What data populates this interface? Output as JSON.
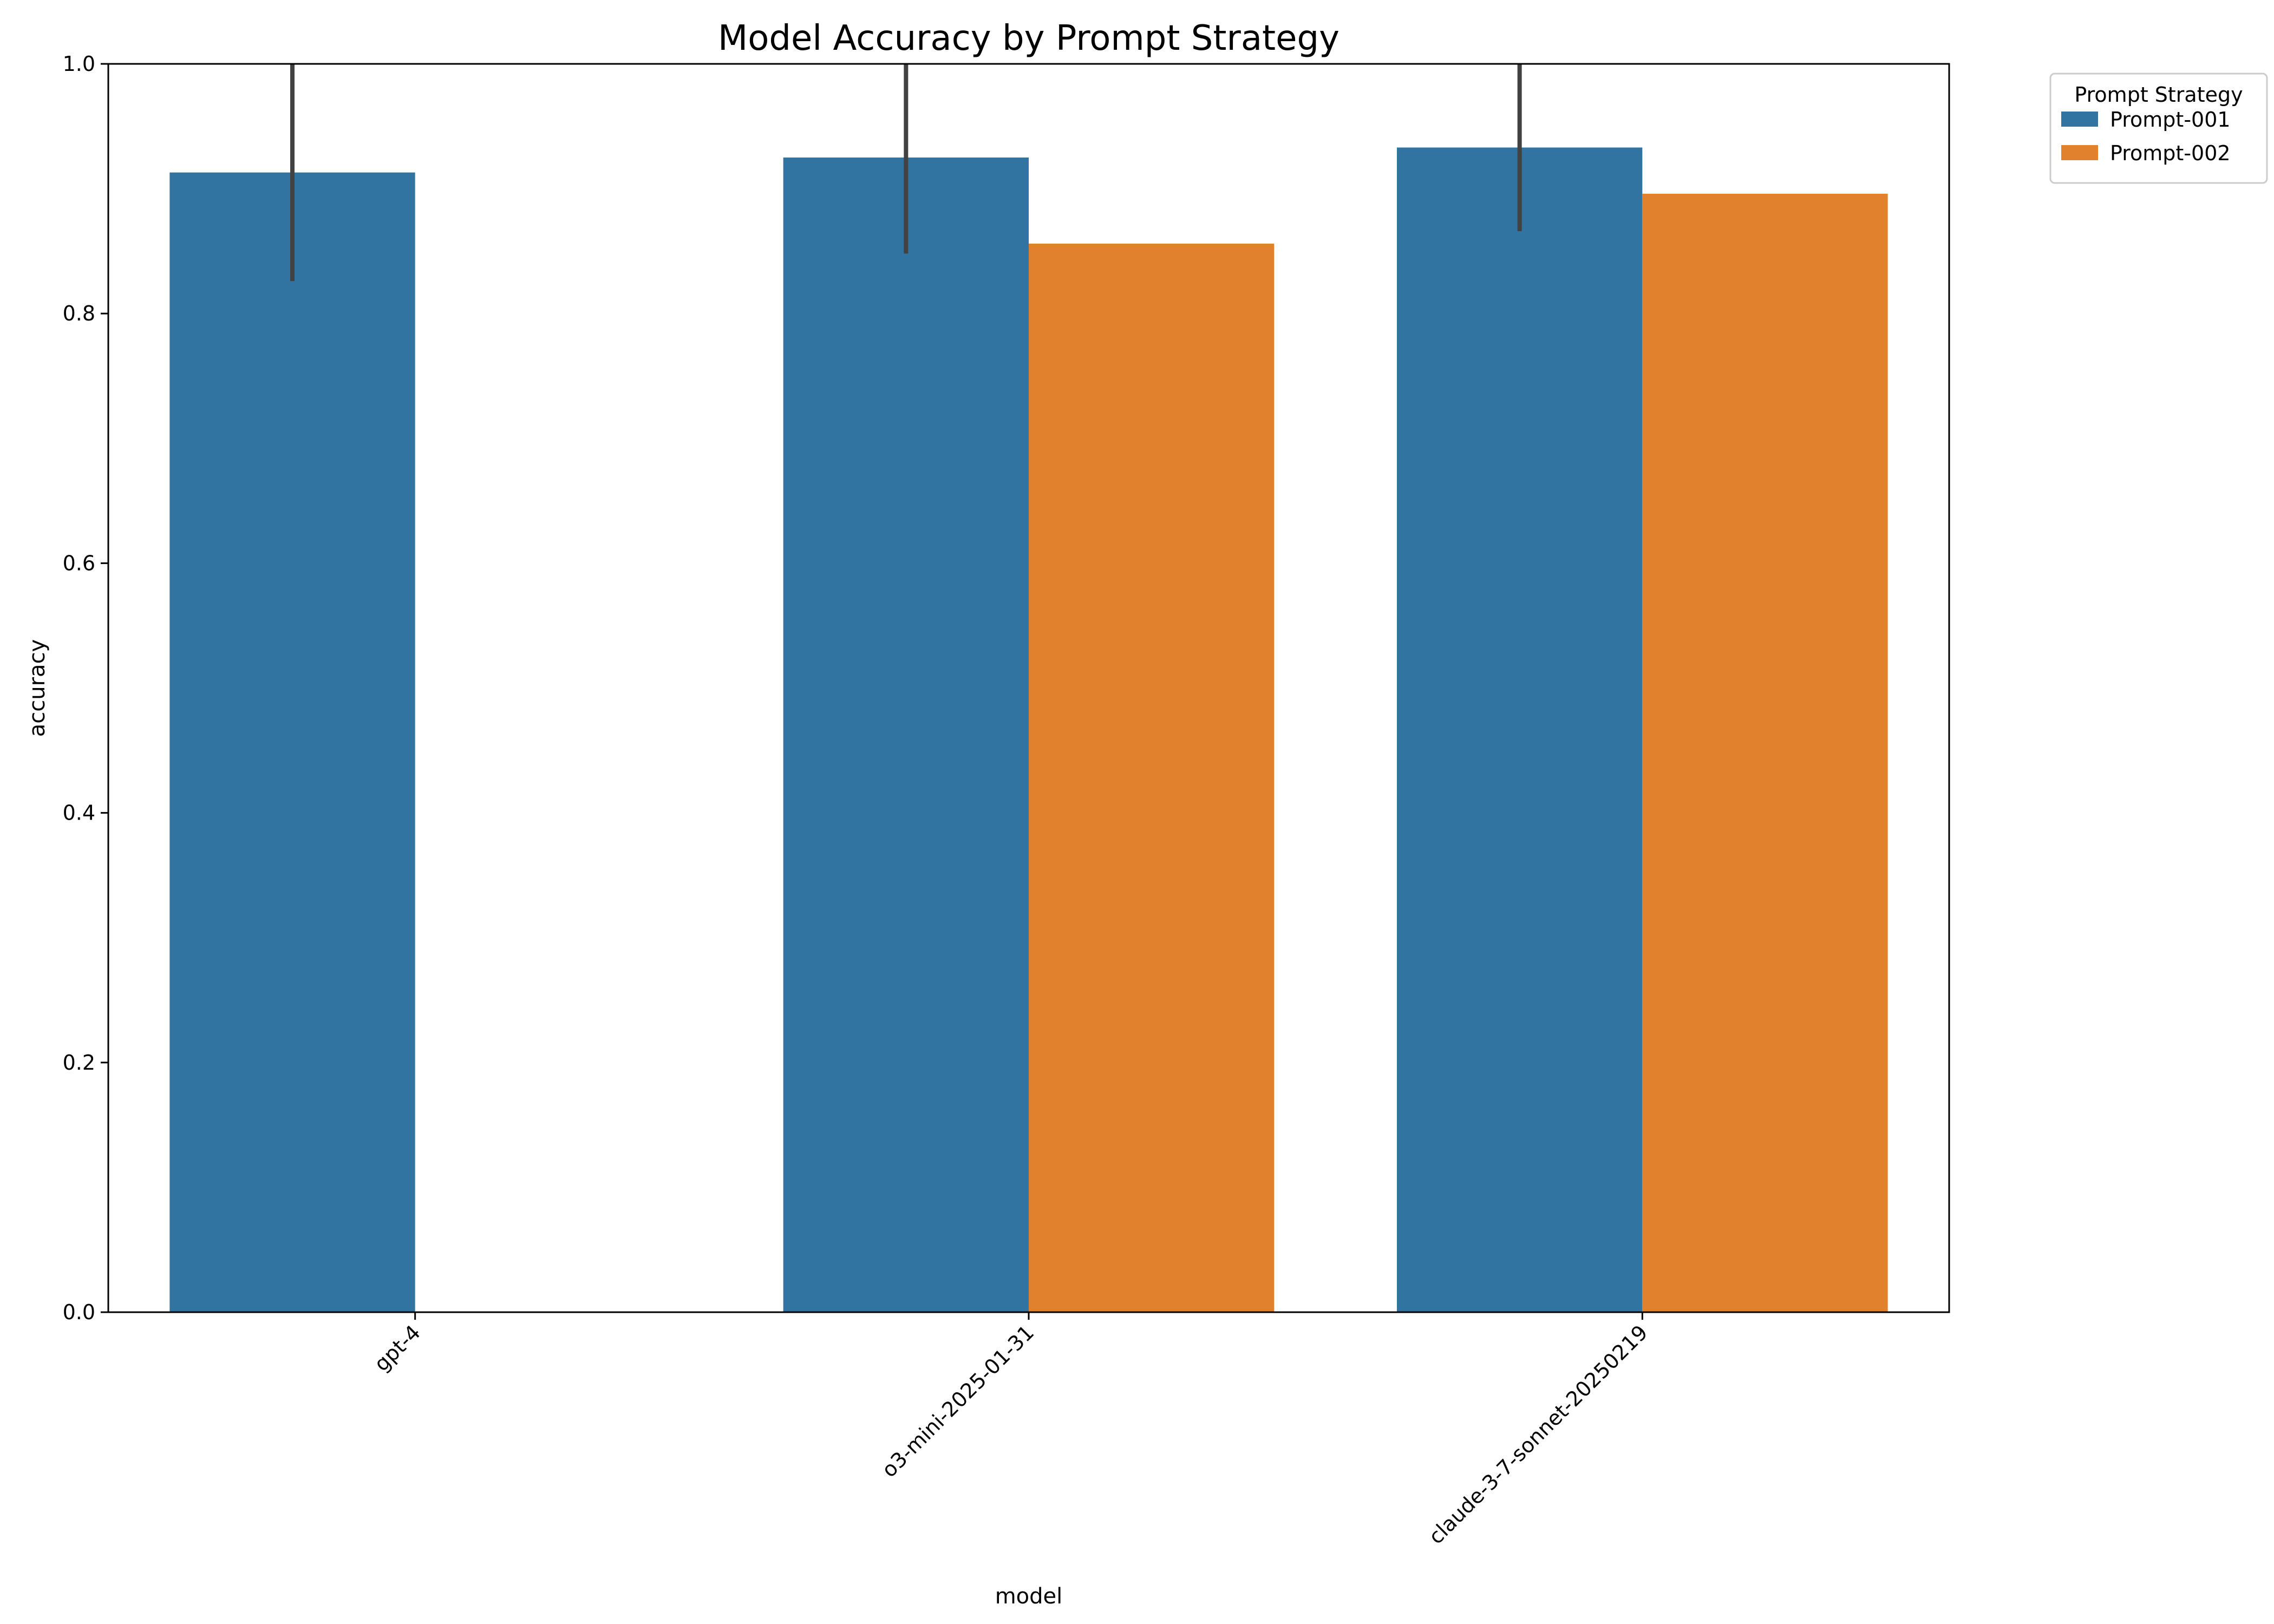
{
  "chart_data": {
    "type": "bar",
    "title": "Model Accuracy by Prompt Strategy",
    "xlabel": "model",
    "ylabel": "accuracy",
    "ylim": [
      0,
      1.0
    ],
    "yticks": [
      "0.0",
      "0.2",
      "0.4",
      "0.6",
      "0.8",
      "1.0"
    ],
    "categories": [
      "gpt-4",
      "o3-mini-2025-01-31",
      "claude-3-7-sonnet-20250219"
    ],
    "grid": false,
    "legend": {
      "title": "Prompt Strategy",
      "placement": "outside top-right"
    },
    "series": [
      {
        "name": "Prompt-001",
        "color": "#3274a1",
        "values": [
          0.913,
          0.925,
          0.933
        ],
        "error_low": [
          0.826,
          0.848,
          0.866
        ],
        "error_high": [
          1.0,
          1.0,
          1.0
        ]
      },
      {
        "name": "Prompt-002",
        "color": "#e1812c",
        "values": [
          null,
          0.856,
          0.896
        ],
        "error_low": [
          null,
          null,
          null
        ],
        "error_high": [
          null,
          null,
          null
        ]
      }
    ],
    "error_bar_color": "#424242"
  }
}
